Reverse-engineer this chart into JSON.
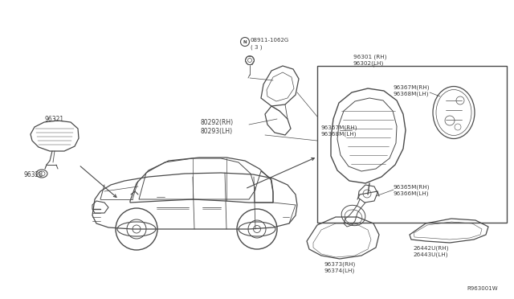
{
  "bg_color": "#ffffff",
  "line_color": "#4a4a4a",
  "text_color": "#3a3a3a",
  "fig_width": 6.4,
  "fig_height": 3.72,
  "dpi": 100,
  "labels": {
    "n_label": "08911-1062G",
    "n_qty": "( 3 )",
    "part_96321": "96321",
    "part_96328": "96328",
    "part_80292": "80292(RH)\n80293(LH)",
    "part_96301": "96301 (RH)\n96302(LH)",
    "part_96367": "96367M(RH)\n96368M(LH)",
    "part_96365": "96365M(RH)\n96366M(LH)",
    "part_96373": "96373(RH)\n96374(LH)",
    "part_26442": "26442U(RH)\n26443U(LH)",
    "watermark": "R963001W"
  },
  "font_size": 5.5,
  "font_size_sm": 5.0
}
